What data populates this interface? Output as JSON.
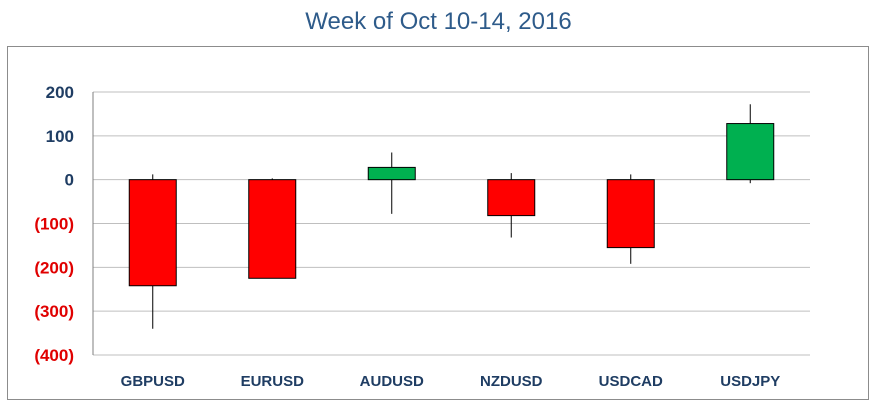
{
  "chart_data": {
    "type": "candlestick",
    "title": "Week of Oct 10-14, 2016",
    "xlabel": "",
    "ylabel": "",
    "ylim": [
      -400,
      200
    ],
    "yticks": [
      200,
      100,
      0,
      -100,
      -200,
      -300,
      -400
    ],
    "ytick_labels": [
      "200",
      "100",
      "0",
      "(100)",
      "(200)",
      "(300)",
      "(400)"
    ],
    "grid": true,
    "categories": [
      "GBPUSD",
      "EURUSD",
      "AUDUSD",
      "NZDUSD",
      "USDCAD",
      "USDJPY"
    ],
    "candles": [
      {
        "open": 0,
        "close": -242,
        "high": 12,
        "low": -340
      },
      {
        "open": 0,
        "close": -225,
        "high": 3,
        "low": -225
      },
      {
        "open": 0,
        "close": 28,
        "high": 62,
        "low": -78
      },
      {
        "open": 0,
        "close": -82,
        "high": 15,
        "low": -132
      },
      {
        "open": 0,
        "close": -155,
        "high": 12,
        "low": -192
      },
      {
        "open": 0,
        "close": 128,
        "high": 172,
        "low": -8
      }
    ],
    "colors": {
      "up": "#00b050",
      "down": "#ff0000",
      "outline": "#000000",
      "grid": "#bfbfbf",
      "axis": "#7f7f7f"
    }
  }
}
